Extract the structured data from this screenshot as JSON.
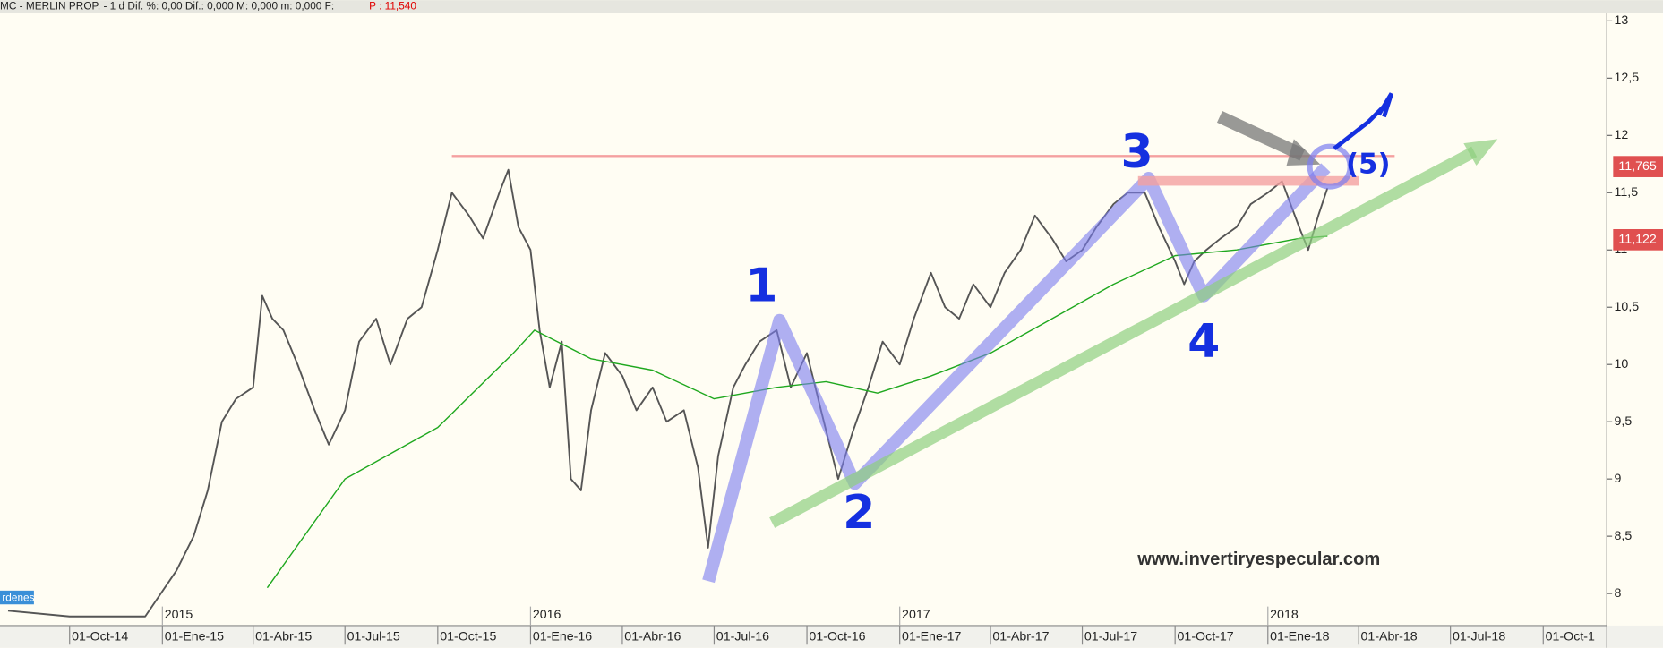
{
  "header": {
    "text": "MC - MERLIN PROP. -  1 d Dif. %: 0,00  Dif.: 0,000  M: 0,000  m: 0,000  F:",
    "price": "P : 11,540"
  },
  "annotations": {
    "wave_labels": [
      "1",
      "2",
      "3",
      "4",
      "(5)"
    ],
    "website": "www.invertiryespecular.com",
    "price_tags": [
      "11,765",
      "11,122"
    ],
    "panel_tag": "rdenes"
  },
  "chart_data": {
    "type": "line",
    "xlim": [
      "2014-07-24",
      "2018-12-03"
    ],
    "ylim": [
      7.72,
      13.07
    ],
    "yticks": [
      8,
      {
        "value": 8.5,
        "label": "8,5"
      },
      9,
      {
        "value": 9.5,
        "label": "9,5"
      },
      10,
      {
        "value": 10.5,
        "label": "10,5"
      },
      11,
      {
        "value": 11.5,
        "label": "11,5"
      },
      12,
      {
        "value": 12.5,
        "label": "12,5"
      },
      13
    ],
    "xticks": [
      {
        "value": "2014-10-01",
        "label": "01-Oct-14"
      },
      {
        "value": "2015-01-01",
        "label": "01-Ene-15"
      },
      {
        "value": "2015-04-01",
        "label": "01-Abr-15"
      },
      {
        "value": "2015-07-01",
        "label": "01-Jul-15"
      },
      {
        "value": "2015-10-01",
        "label": "01-Oct-15"
      },
      {
        "value": "2016-01-01",
        "label": "01-Ene-16"
      },
      {
        "value": "2016-04-01",
        "label": "01-Abr-16"
      },
      {
        "value": "2016-07-01",
        "label": "01-Jul-16"
      },
      {
        "value": "2016-10-01",
        "label": "01-Oct-16"
      },
      {
        "value": "2017-01-01",
        "label": "01-Ene-17"
      },
      {
        "value": "2017-04-01",
        "label": "01-Abr-17"
      },
      {
        "value": "2017-07-01",
        "label": "01-Jul-17"
      },
      {
        "value": "2017-10-01",
        "label": "01-Oct-17"
      },
      {
        "value": "2018-01-01",
        "label": "01-Ene-18"
      },
      {
        "value": "2018-04-01",
        "label": "01-Abr-18"
      },
      {
        "value": "2018-07-01",
        "label": "01-Jul-18"
      },
      {
        "value": "2018-10-01",
        "label": "01-Oct-1"
      }
    ],
    "year_ticks": [
      {
        "value": "2015-01-01",
        "label": "2015"
      },
      {
        "value": "2016-01-01",
        "label": "2016"
      },
      {
        "value": "2017-01-01",
        "label": "2017"
      },
      {
        "value": "2018-01-01",
        "label": "2018"
      }
    ],
    "resistance": {
      "value": 11.82,
      "from": "2015-10-15",
      "color": "#f4a0a0"
    },
    "series": [
      {
        "color": "#555555",
        "x": [
          "2014-08-01",
          "2014-10-01",
          "2014-12-15",
          "2015-01-15",
          "2015-02-01",
          "2015-02-15",
          "2015-03-01",
          "2015-03-15",
          "2015-04-01",
          "2015-04-10",
          "2015-04-20",
          "2015-05-01",
          "2015-05-15",
          "2015-06-01",
          "2015-06-15",
          "2015-07-01",
          "2015-07-15",
          "2015-08-01",
          "2015-08-15",
          "2015-09-01",
          "2015-09-15",
          "2015-10-01",
          "2015-10-15",
          "2015-11-01",
          "2015-11-15",
          "2015-12-01",
          "2015-12-10",
          "2015-12-20",
          "2016-01-01",
          "2016-01-10",
          "2016-01-20",
          "2016-02-01",
          "2016-02-10",
          "2016-02-20",
          "2016-03-01",
          "2016-03-15",
          "2016-04-01",
          "2016-04-15",
          "2016-05-01",
          "2016-05-15",
          "2016-06-01",
          "2016-06-15",
          "2016-06-25",
          "2016-07-05",
          "2016-07-20",
          "2016-08-01",
          "2016-08-15",
          "2016-09-01",
          "2016-09-15",
          "2016-10-01",
          "2016-10-15",
          "2016-11-01",
          "2016-11-15",
          "2016-12-01",
          "2016-12-15",
          "2017-01-01",
          "2017-01-15",
          "2017-02-01",
          "2017-02-15",
          "2017-03-01",
          "2017-03-15",
          "2017-04-01",
          "2017-04-15",
          "2017-05-01",
          "2017-05-15",
          "2017-06-01",
          "2017-06-15",
          "2017-07-01",
          "2017-07-15",
          "2017-08-01",
          "2017-08-15",
          "2017-09-01",
          "2017-09-15",
          "2017-10-01",
          "2017-10-10",
          "2017-10-20",
          "2017-11-01",
          "2017-11-15",
          "2017-12-01",
          "2017-12-15",
          "2018-01-01",
          "2018-01-15",
          "2018-02-01",
          "2018-02-10",
          "2018-02-20",
          "2018-03-01"
        ],
        "values": [
          7.85,
          7.8,
          7.8,
          8.2,
          8.5,
          8.9,
          9.5,
          9.7,
          9.8,
          10.6,
          10.4,
          10.3,
          10.0,
          9.6,
          9.3,
          9.6,
          10.2,
          10.4,
          10.0,
          10.4,
          10.5,
          11.0,
          11.5,
          11.3,
          11.1,
          11.5,
          11.7,
          11.2,
          11.0,
          10.3,
          9.8,
          10.2,
          9.0,
          8.9,
          9.6,
          10.1,
          9.9,
          9.6,
          9.8,
          9.5,
          9.6,
          9.1,
          8.4,
          9.2,
          9.8,
          10.0,
          10.2,
          10.3,
          9.8,
          10.1,
          9.6,
          9.0,
          9.4,
          9.8,
          10.2,
          10.0,
          10.4,
          10.8,
          10.5,
          10.4,
          10.7,
          10.5,
          10.8,
          11.0,
          11.3,
          11.1,
          10.9,
          11.0,
          11.2,
          11.4,
          11.5,
          11.5,
          11.2,
          10.9,
          10.7,
          10.9,
          11.0,
          11.1,
          11.2,
          11.4,
          11.5,
          11.6,
          11.2,
          11.0,
          11.3,
          11.54
        ]
      },
      {
        "color": "#1fa81f",
        "x": [
          "2015-04-15",
          "2015-07-01",
          "2015-10-01",
          "2015-12-15",
          "2016-01-05",
          "2016-03-01",
          "2016-05-01",
          "2016-07-01",
          "2016-09-01",
          "2016-10-20",
          "2016-12-10",
          "2017-02-01",
          "2017-04-01",
          "2017-06-01",
          "2017-08-01",
          "2017-10-01",
          "2017-12-01",
          "2018-02-01",
          "2018-03-01"
        ],
        "values": [
          8.05,
          9.0,
          9.45,
          10.1,
          10.3,
          10.05,
          9.95,
          9.7,
          9.8,
          9.85,
          9.75,
          9.9,
          10.1,
          10.4,
          10.7,
          10.95,
          11.0,
          11.1,
          11.12
        ]
      }
    ]
  }
}
